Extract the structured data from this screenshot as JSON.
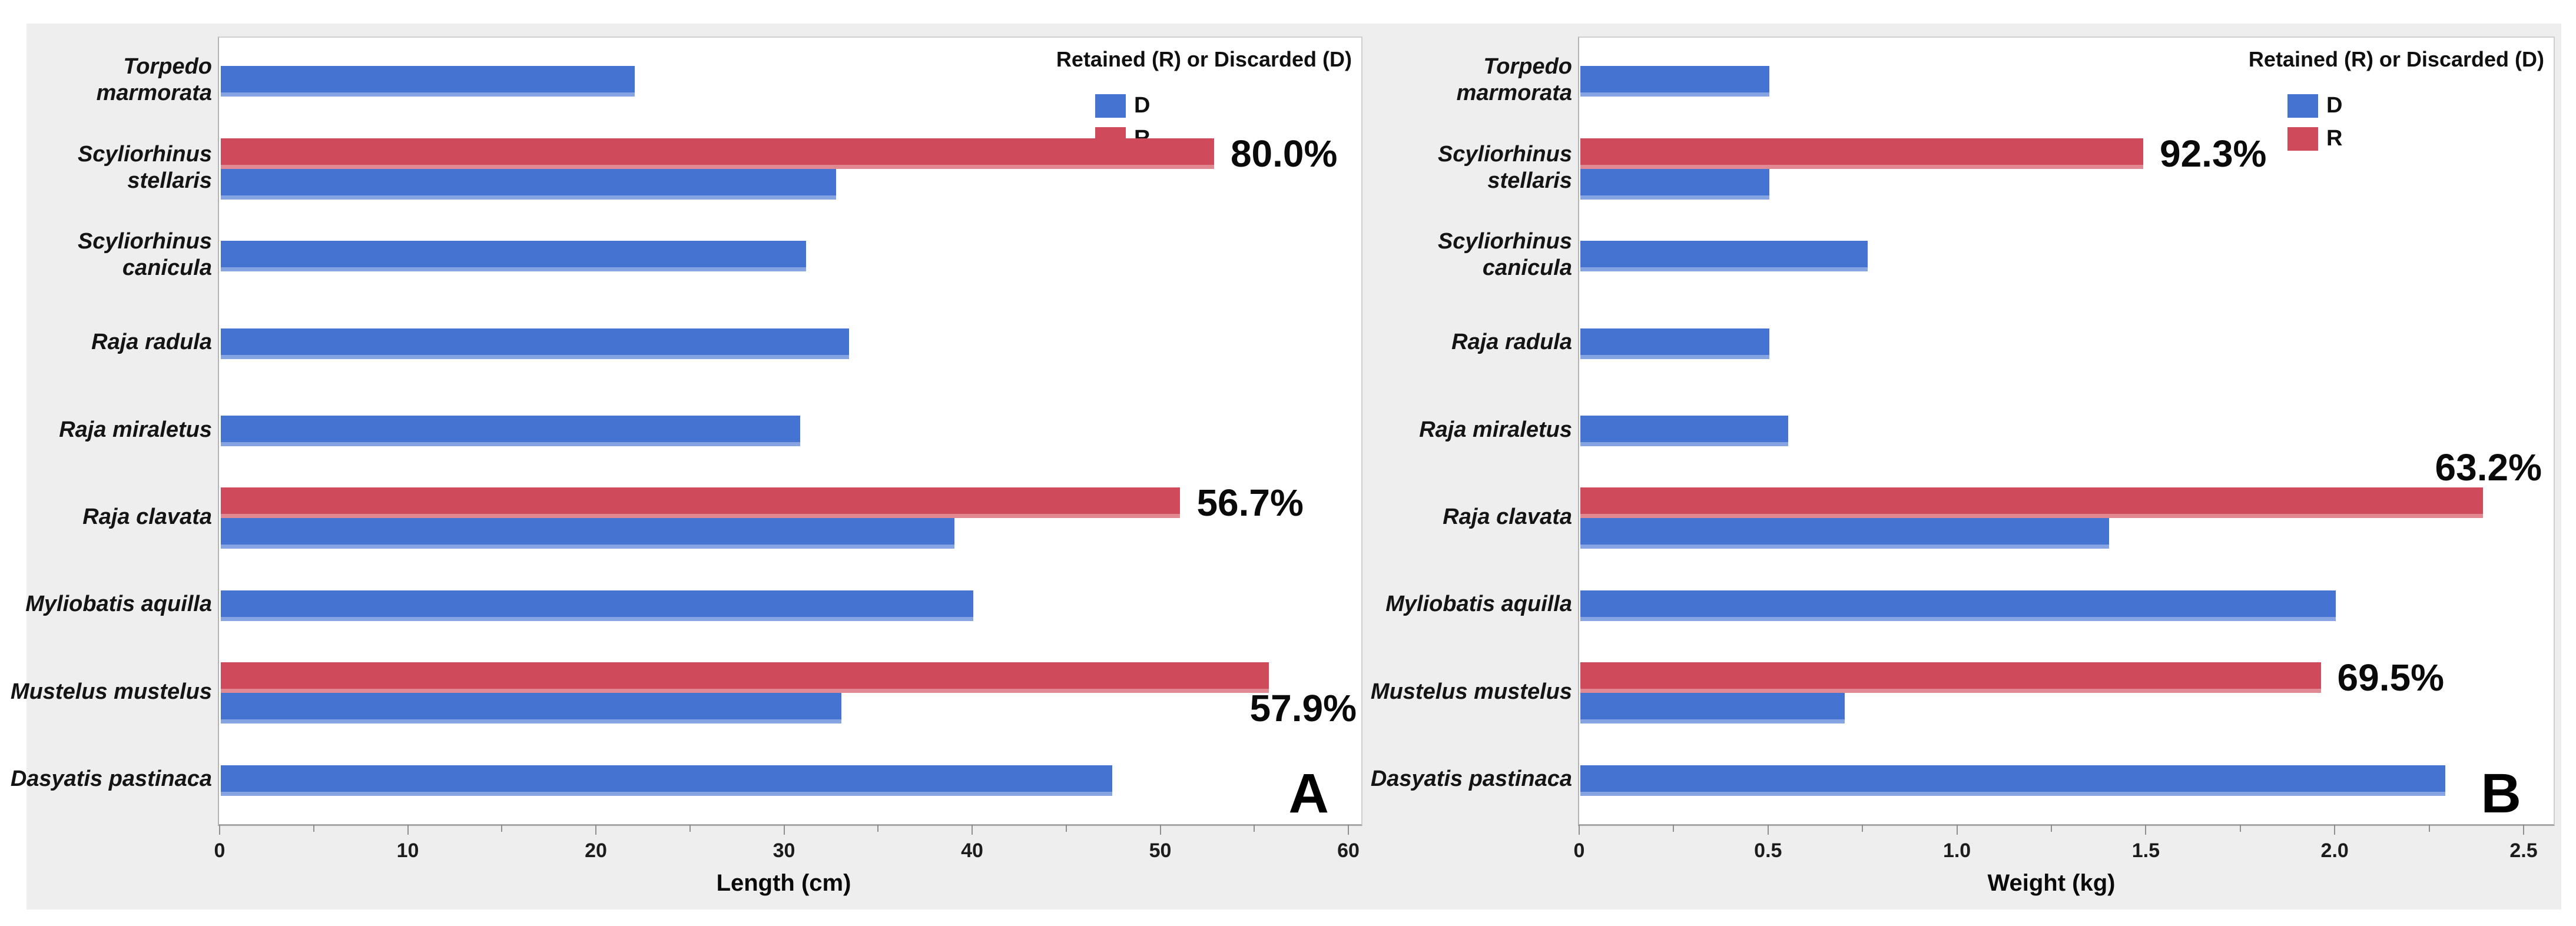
{
  "figure": {
    "legend": {
      "title": "Retained (R) or Discarded (D)",
      "items": [
        {
          "label": "D",
          "meaning": "Discarded",
          "color": "#4573D1"
        },
        {
          "label": "R",
          "meaning": "Retained",
          "color": "#CF4A5A"
        }
      ]
    },
    "colors": {
      "discarded_blue": "#4573D1",
      "retained_red": "#CF4A5A",
      "figure_background": "#EFEEEE",
      "plot_background": "#FFFFFF"
    }
  },
  "chart_data": [
    {
      "type": "bar",
      "orientation": "horizontal",
      "panel_label": "A",
      "xlabel": "Length (cm)",
      "xlim": [
        0,
        60
      ],
      "xticks": [
        0,
        10,
        20,
        30,
        40,
        50,
        60
      ],
      "xtick_labels": [
        "0",
        "10",
        "20",
        "30",
        "40",
        "50",
        "60"
      ],
      "xticks_minor": [
        5,
        15,
        25,
        35,
        45,
        55
      ],
      "grid": false,
      "legend_position": "top-right",
      "categories": [
        "Torpedo marmorata",
        "Scyliorhinus stellaris",
        "Scyliorhinus canicula",
        "Raja radula",
        "Raja miraletus",
        "Raja clavata",
        "Myliobatis aquilla",
        "Mustelus mustelus",
        "Dasyatis pastinaca"
      ],
      "category_wrap": [
        [
          "Torpedo",
          "marmorata"
        ],
        [
          "Scyliorhinus",
          "stellaris"
        ],
        [
          "Scyliorhinus",
          "canicula"
        ],
        [
          "Raja radula"
        ],
        [
          "Raja miraletus"
        ],
        [
          "Raja clavata"
        ],
        [
          "Myliobatis aquilla"
        ],
        [
          "Mustelus mustelus"
        ],
        [
          "Dasyatis pastinaca"
        ]
      ],
      "series": [
        {
          "name": "D",
          "color": "#4573D1",
          "values": [
            22.0,
            32.7,
            31.1,
            33.4,
            30.8,
            39.0,
            40.0,
            33.0,
            47.4
          ]
        },
        {
          "name": "R",
          "color": "#CF4A5A",
          "values": [
            null,
            52.8,
            null,
            null,
            null,
            51.0,
            null,
            55.7,
            null
          ]
        }
      ],
      "annotations": [
        {
          "category": "Scyliorhinus stellaris",
          "text": "80.0%",
          "placement": "right-of-bar"
        },
        {
          "category": "Raja clavata",
          "text": "56.7%",
          "placement": "right-of-bar"
        },
        {
          "category": "Mustelus mustelus",
          "text": "57.9%",
          "placement": "below-bar-end"
        }
      ]
    },
    {
      "type": "bar",
      "orientation": "horizontal",
      "panel_label": "B",
      "xlabel": "Weight (kg)",
      "xlim": [
        0,
        2.5
      ],
      "xticks": [
        0,
        0.5,
        1.0,
        1.5,
        2.0,
        2.5
      ],
      "xtick_labels": [
        "0",
        "0.5",
        "1.0",
        "1.5",
        "2.0",
        "2.5"
      ],
      "xticks_minor": [
        0.25,
        0.75,
        1.25,
        1.75,
        2.25
      ],
      "grid": false,
      "legend_position": "top-right",
      "categories": [
        "Torpedo marmorata",
        "Scyliorhinus stellaris",
        "Scyliorhinus canicula",
        "Raja radula",
        "Raja miraletus",
        "Raja clavata",
        "Myliobatis aquilla",
        "Mustelus mustelus",
        "Dasyatis pastinaca"
      ],
      "category_wrap": [
        [
          "Torpedo",
          "marmorata"
        ],
        [
          "Scyliorhinus",
          "stellaris"
        ],
        [
          "Scyliorhinus",
          "canicula"
        ],
        [
          "Raja radula"
        ],
        [
          "Raja miraletus"
        ],
        [
          "Raja clavata"
        ],
        [
          "Myliobatis aquilla"
        ],
        [
          "Mustelus mustelus"
        ],
        [
          "Dasyatis pastinaca"
        ]
      ],
      "series": [
        {
          "name": "D",
          "color": "#4573D1",
          "values": [
            0.5,
            0.5,
            0.76,
            0.5,
            0.55,
            1.4,
            2.0,
            0.7,
            2.29
          ]
        },
        {
          "name": "R",
          "color": "#CF4A5A",
          "values": [
            null,
            1.49,
            null,
            null,
            null,
            2.39,
            null,
            1.96,
            null
          ]
        }
      ],
      "annotations": [
        {
          "category": "Scyliorhinus stellaris",
          "text": "92.3%",
          "placement": "right-of-bar"
        },
        {
          "category": "Raja clavata",
          "text": "63.2%",
          "placement": "above-bar-end"
        },
        {
          "category": "Mustelus mustelus",
          "text": "69.5%",
          "placement": "right-of-bar"
        }
      ]
    }
  ]
}
